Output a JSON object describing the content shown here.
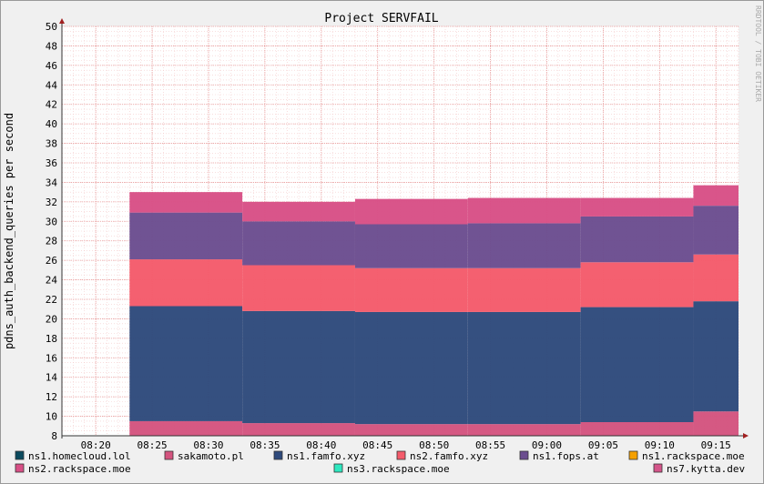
{
  "chart_data": {
    "type": "area",
    "title": "Project SERVFAIL",
    "ylabel": "pdns_auth_backend_queries per second",
    "watermark": "RRDTOOL / TOBI OETIKER",
    "ylim": [
      8,
      50
    ],
    "yticks": [
      8,
      10,
      12,
      14,
      16,
      18,
      20,
      22,
      24,
      26,
      28,
      30,
      32,
      34,
      36,
      38,
      40,
      42,
      44,
      46,
      48,
      50
    ],
    "xticks": [
      "08:20",
      "08:25",
      "08:30",
      "08:35",
      "08:40",
      "08:45",
      "08:50",
      "08:55",
      "09:00",
      "09:05",
      "09:10",
      "09:15"
    ],
    "x_range": [
      "08:17",
      "09:17"
    ],
    "grid": true,
    "legend_position": "bottom",
    "segments": [
      {
        "start": "08:23",
        "end": "08:33"
      },
      {
        "start": "08:33",
        "end": "08:43"
      },
      {
        "start": "08:43",
        "end": "08:53"
      },
      {
        "start": "08:53",
        "end": "09:03"
      },
      {
        "start": "09:03",
        "end": "09:13"
      },
      {
        "start": "09:13",
        "end": "09:18"
      }
    ],
    "series": [
      {
        "name": "ns1.homecloud.lol",
        "color": "#0b4a5e",
        "values": [
          0.8,
          0.7,
          0.6,
          0.6,
          0.7,
          1.3
        ]
      },
      {
        "name": "sakamoto.pl",
        "color": "#d4547f",
        "values": [
          8.7,
          8.6,
          8.6,
          8.6,
          8.7,
          9.2
        ]
      },
      {
        "name": "ns1.famfo.xyz",
        "color": "#2e4a7c",
        "values": [
          11.8,
          11.5,
          11.5,
          11.5,
          11.8,
          11.3
        ]
      },
      {
        "name": "ns2.famfo.xyz",
        "color": "#f45b6b",
        "values": [
          4.8,
          4.7,
          4.5,
          4.5,
          4.6,
          4.8
        ]
      },
      {
        "name": "ns1.fops.at",
        "color": "#6b4d8f",
        "values": [
          4.8,
          4.5,
          4.5,
          4.6,
          4.7,
          5.0
        ]
      },
      {
        "name": "ns1.rackspace.moe",
        "color": "#f5a000",
        "values": [
          0,
          0,
          0,
          0,
          0,
          0
        ]
      },
      {
        "name": "ns2.rackspace.moe",
        "color": "#d84f86",
        "values": [
          2.1,
          2.0,
          2.6,
          2.6,
          1.9,
          2.1
        ]
      },
      {
        "name": "ns3.rackspace.moe",
        "color": "#2ee8c0",
        "values": [
          0,
          0,
          0,
          0,
          0,
          0
        ]
      },
      {
        "name": "ns7.kytta.dev",
        "color": "#d4558a",
        "values": [
          0,
          0,
          0,
          0,
          0,
          0
        ]
      }
    ]
  }
}
